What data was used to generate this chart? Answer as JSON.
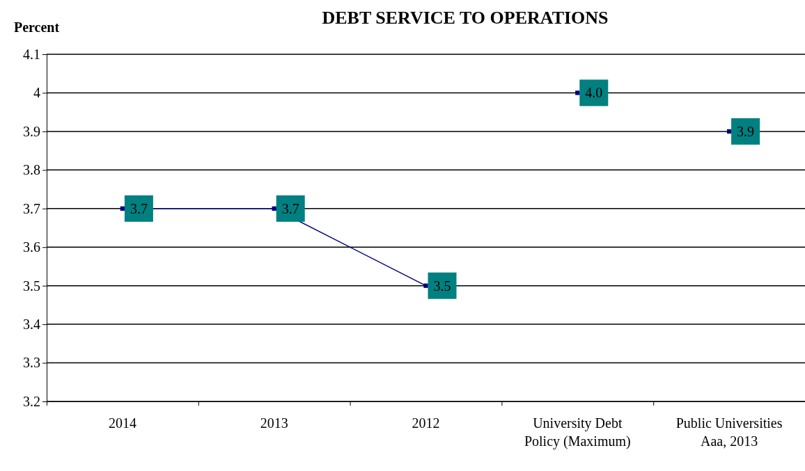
{
  "chart_data": {
    "type": "line",
    "title": "DEBT SERVICE  TO OPERATIONS",
    "ylabel": "Percent",
    "categories": [
      "2014",
      "2013",
      "2012",
      "University Debt Policy (Maximum)",
      "Public Universities  Aaa, 2013"
    ],
    "series": [
      {
        "color": "#000080",
        "values": [
          3.7,
          3.7,
          3.5,
          null,
          null
        ],
        "value_labels": [
          "3.7",
          "3.7",
          "3.5",
          null,
          null
        ]
      },
      {
        "type": "scatter",
        "color": "#000080",
        "values": [
          null,
          null,
          null,
          4.0,
          3.9
        ],
        "value_labels": [
          null,
          null,
          null,
          "4.0",
          "3.9"
        ]
      }
    ],
    "ylim": [
      3.2,
      4.1
    ],
    "yticks": [
      3.2,
      3.3,
      3.4,
      3.5,
      3.6,
      3.7,
      3.8,
      3.9,
      4,
      4.1
    ],
    "grid": "y",
    "marker": "square",
    "line_style": "solid"
  }
}
